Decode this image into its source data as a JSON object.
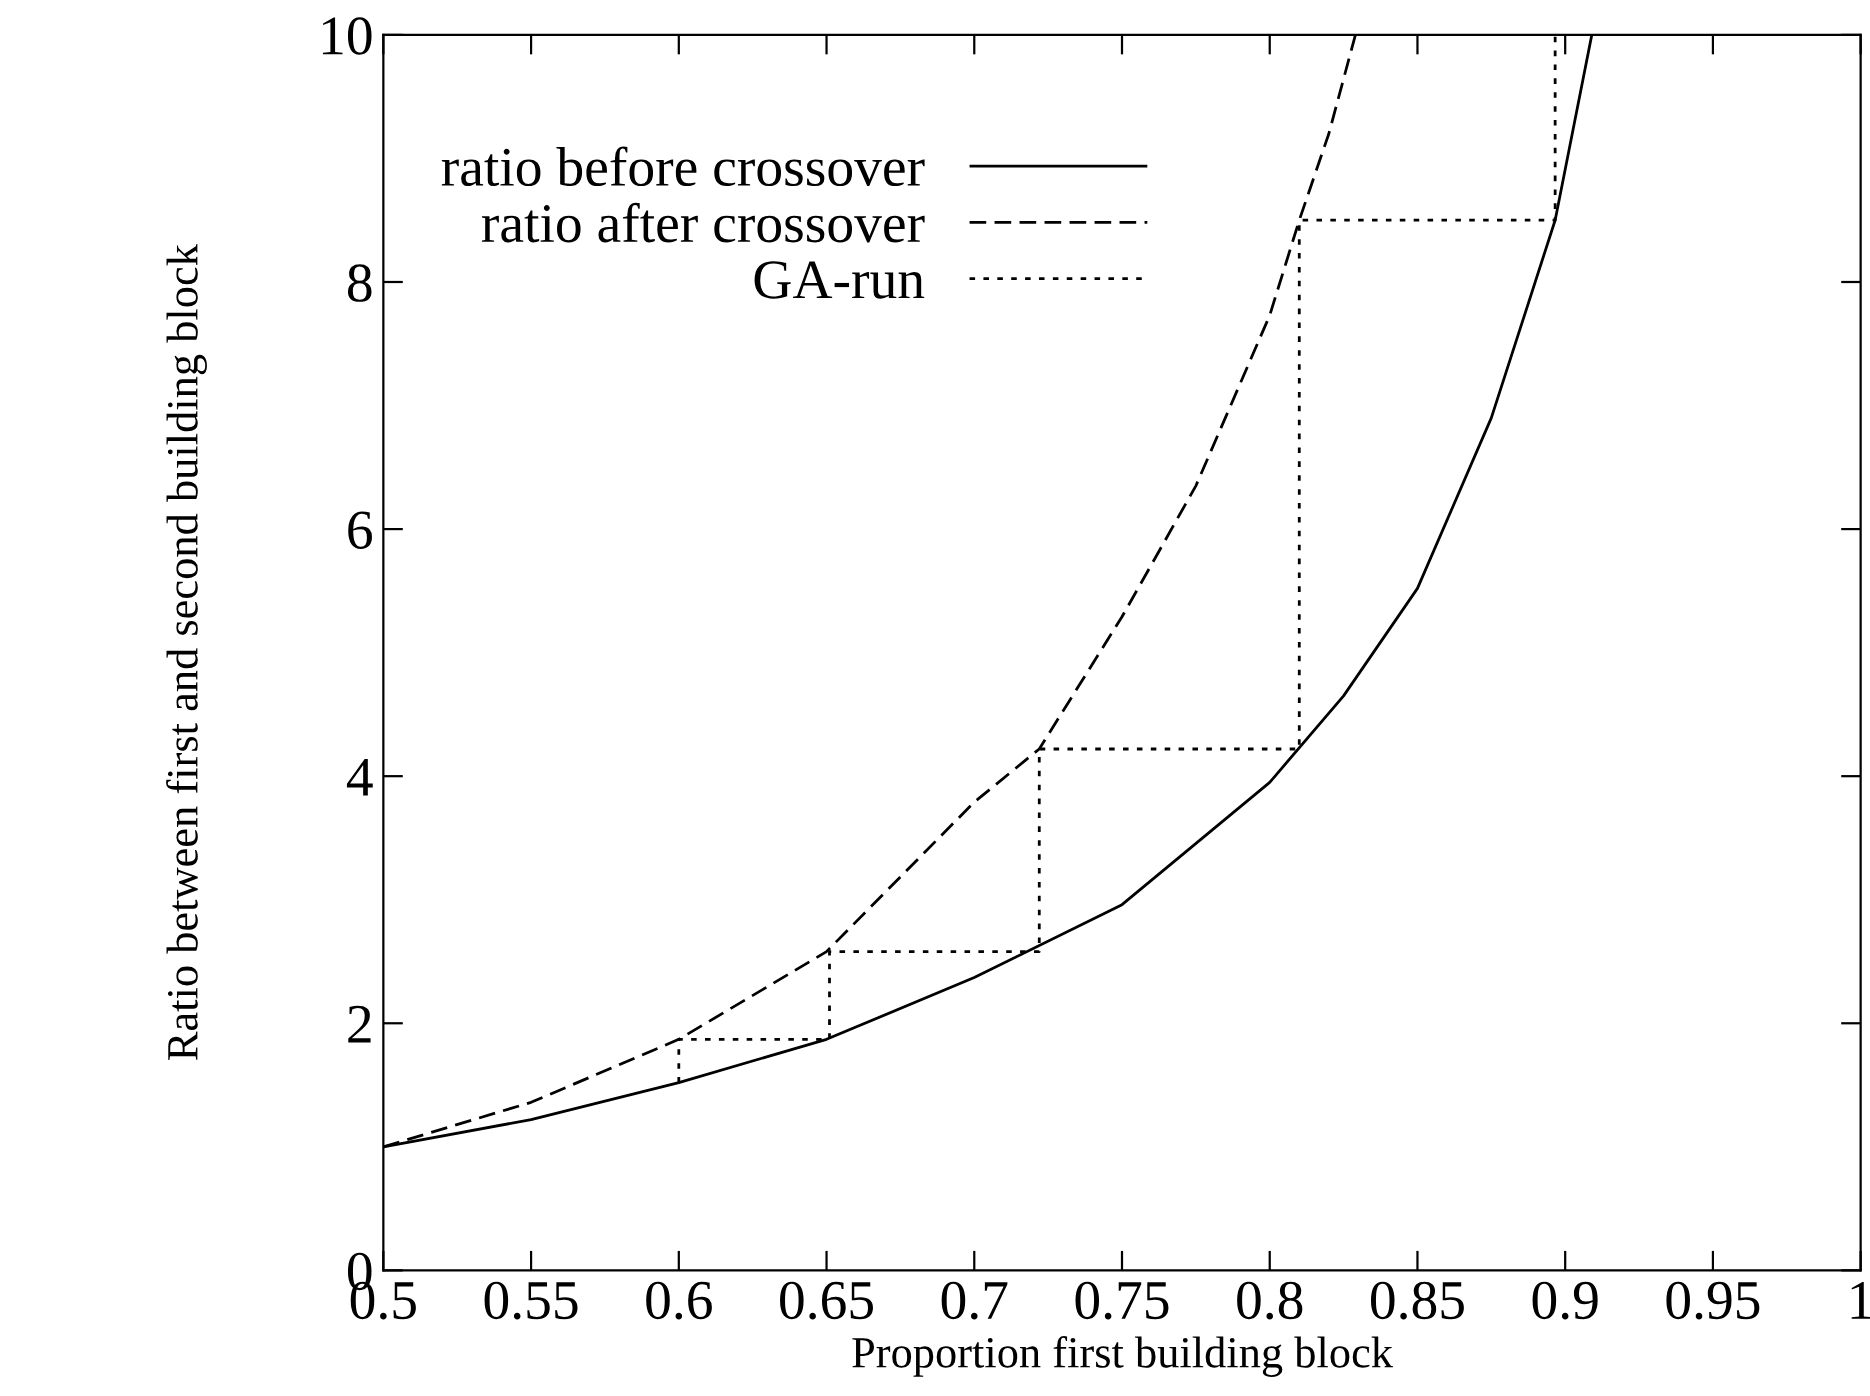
{
  "chart_data": {
    "type": "line",
    "xlabel": "Proportion first building block",
    "ylabel": "Ratio between first and second building block",
    "xlim": [
      0.5,
      1
    ],
    "ylim": [
      0,
      10
    ],
    "xticks": [
      0.5,
      0.55,
      0.6,
      0.65,
      0.7,
      0.75,
      0.8,
      0.85,
      0.9,
      0.95,
      1
    ],
    "yticks": [
      0,
      2,
      4,
      6,
      8,
      10
    ],
    "grid": false,
    "legend": "top left",
    "marker": "none",
    "series": [
      {
        "name": "ratio before crossover",
        "color": "#000000",
        "line_style": "solid",
        "x": [
          0.5,
          0.55,
          0.6,
          0.65,
          0.7,
          0.75,
          0.8,
          0.825,
          0.85,
          0.875,
          0.8966,
          0.909
        ],
        "values": [
          1,
          1.22,
          1.52,
          1.87,
          2.37,
          2.96,
          3.95,
          4.65,
          5.52,
          6.9,
          8.5,
          10
        ]
      },
      {
        "name": "ratio after crossover",
        "color": "#000000",
        "line_style": "dashed",
        "x": [
          0.5,
          0.55,
          0.6,
          0.65,
          0.7,
          0.722,
          0.75,
          0.775,
          0.8,
          0.81,
          0.82,
          0.829
        ],
        "values": [
          1,
          1.36,
          1.87,
          2.58,
          3.79,
          4.22,
          5.29,
          6.35,
          7.73,
          8.5,
          9.2,
          10
        ]
      },
      {
        "name": "GA-run",
        "color": "#000000",
        "line_style": "dotted",
        "x": [
          0.6,
          0.6,
          0.651,
          0.651,
          0.722,
          0.722,
          0.81,
          0.81,
          0.8966,
          0.8966
        ],
        "values": [
          1.52,
          1.87,
          1.87,
          2.58,
          2.58,
          4.22,
          4.22,
          8.5,
          8.5,
          10
        ]
      }
    ]
  }
}
